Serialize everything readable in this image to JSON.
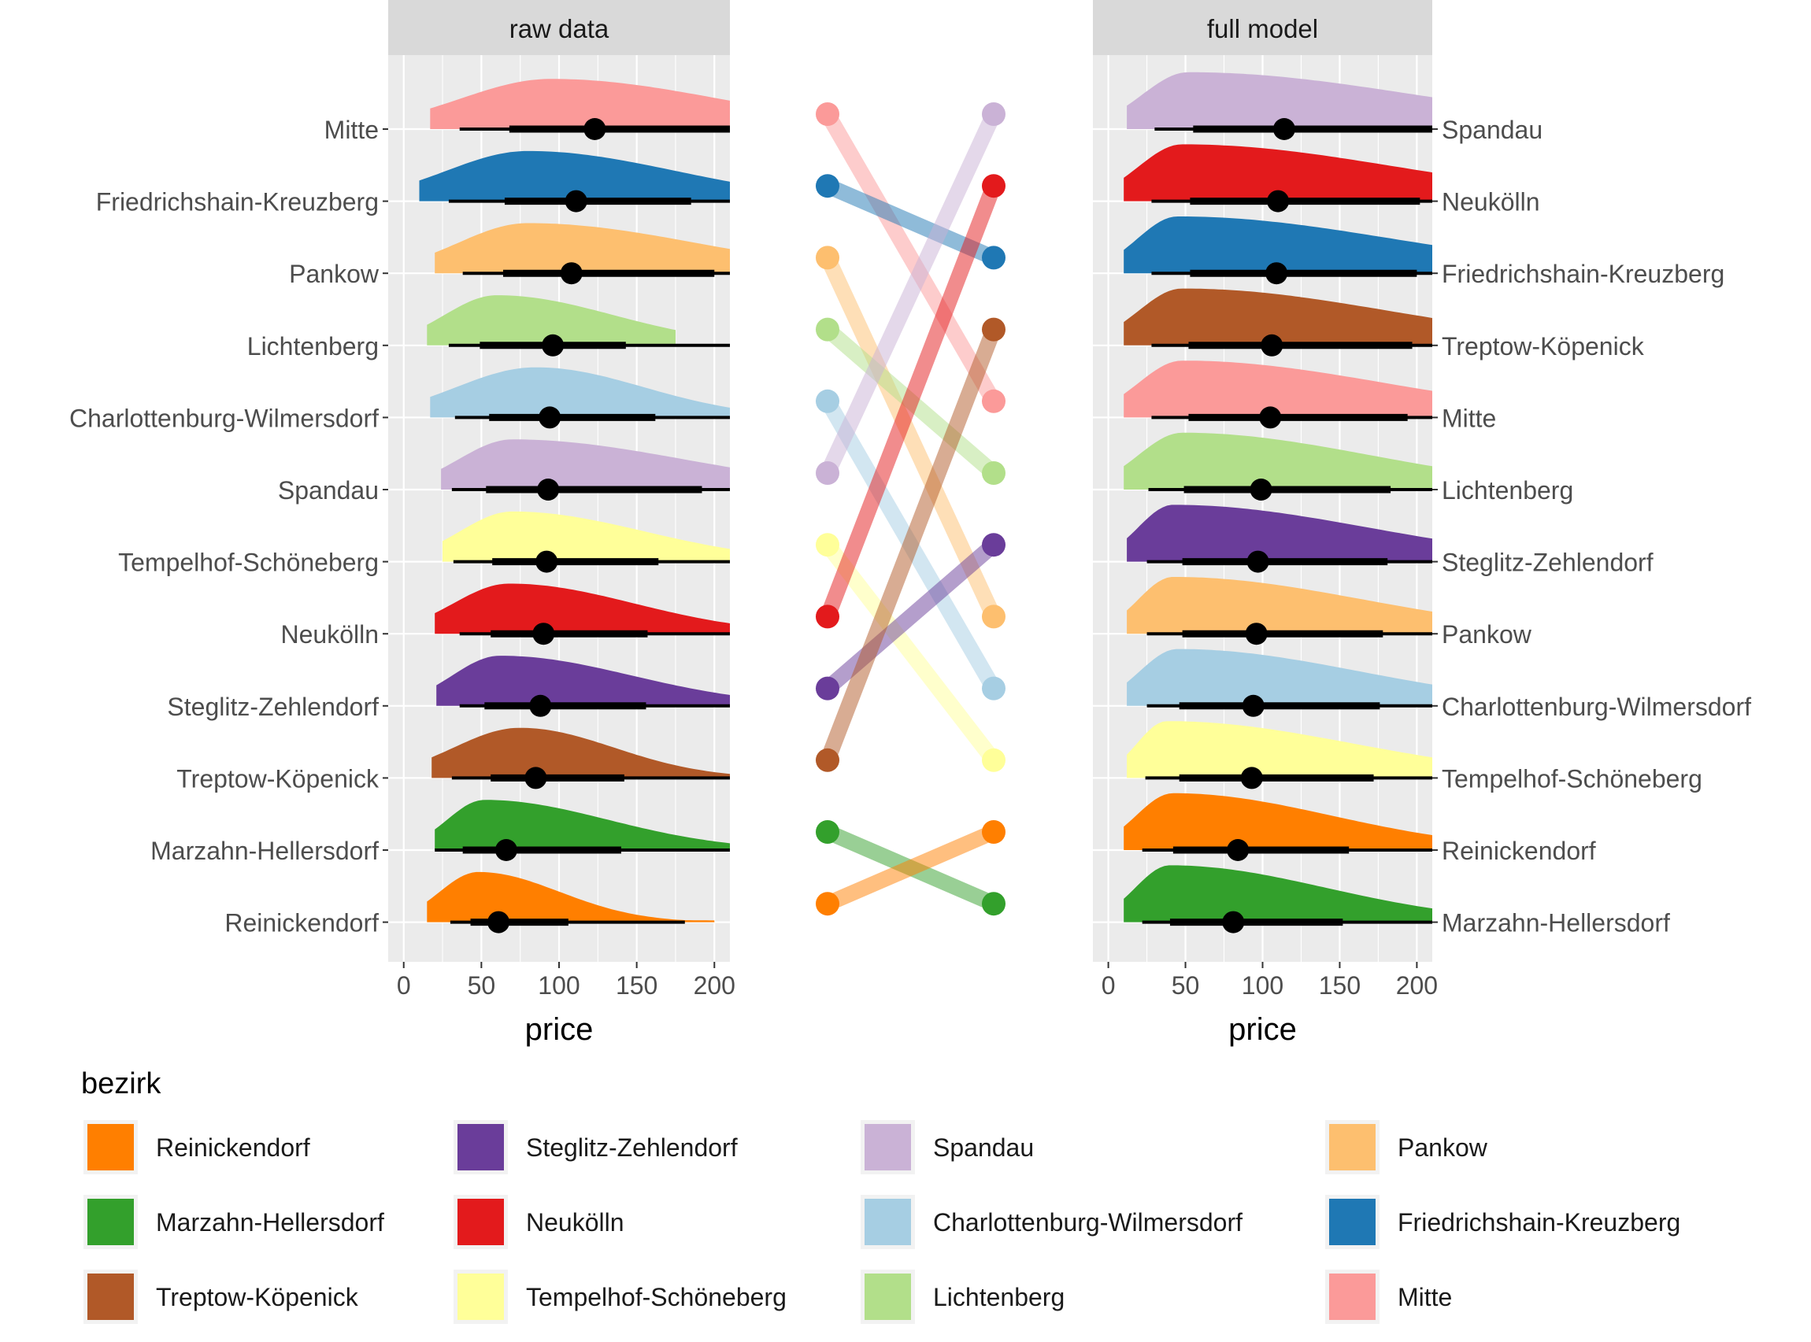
{
  "chart_data": {
    "type": "ridgeline",
    "legend_title": "bezirk",
    "xlabel": "price",
    "xlim": [
      -10,
      210
    ],
    "xticks": [
      0,
      50,
      100,
      150,
      200
    ],
    "districts": {
      "Reinickendorf": "#FF7F00",
      "Marzahn-Hellersdorf": "#33A02C",
      "Treptow-Köpenick": "#B15928",
      "Steglitz-Zehlendorf": "#6A3D9A",
      "Neukölln": "#E31A1C",
      "Tempelhof-Schöneberg": "#FFFF99",
      "Spandau": "#CAB2D6",
      "Charlottenburg-Wilmersdorf": "#A6CEE3",
      "Lichtenberg": "#B2DF8A",
      "Pankow": "#FDBF6F",
      "Friedrichshain-Kreuzberg": "#1F78B4",
      "Mitte": "#FB9A99"
    },
    "legend_order": [
      "Reinickendorf",
      "Marzahn-Hellersdorf",
      "Treptow-Köpenick",
      "Steglitz-Zehlendorf",
      "Neukölln",
      "Tempelhof-Schöneberg",
      "Spandau",
      "Charlottenburg-Wilmersdorf",
      "Lichtenberg",
      "Pankow",
      "Friedrichshain-Kreuzberg",
      "Mitte"
    ],
    "panels": [
      {
        "title": "raw data",
        "rows": [
          {
            "name": "Mitte",
            "median": 123,
            "q66": [
              68,
              215
            ],
            "q95": [
              36,
              215
            ],
            "range": [
              17,
              215
            ],
            "mode": 95
          },
          {
            "name": "Friedrichshain-Kreuzberg",
            "median": 111,
            "q66": [
              65,
              185
            ],
            "q95": [
              29,
              215
            ],
            "range": [
              10,
              215
            ],
            "mode": 80
          },
          {
            "name": "Pankow",
            "median": 108,
            "q66": [
              64,
              200
            ],
            "q95": [
              38,
              215
            ],
            "range": [
              20,
              215
            ],
            "mode": 80
          },
          {
            "name": "Lichtenberg",
            "median": 96,
            "q66": [
              49,
              143
            ],
            "q95": [
              29,
              215
            ],
            "range": [
              15,
              175
            ],
            "mode": 60
          },
          {
            "name": "Charlottenburg-Wilmersdorf",
            "median": 94,
            "q66": [
              55,
              162
            ],
            "q95": [
              33,
              215
            ],
            "range": [
              17,
              215
            ],
            "mode": 85
          },
          {
            "name": "Spandau",
            "median": 93,
            "q66": [
              53,
              192
            ],
            "q95": [
              31,
              215
            ],
            "range": [
              24,
              215
            ],
            "mode": 70
          },
          {
            "name": "Tempelhof-Schöneberg",
            "median": 92,
            "q66": [
              57,
              164
            ],
            "q95": [
              32,
              215
            ],
            "range": [
              25,
              215
            ],
            "mode": 70
          },
          {
            "name": "Neukölln",
            "median": 90,
            "q66": [
              56,
              157
            ],
            "q95": [
              36,
              215
            ],
            "range": [
              20,
              215
            ],
            "mode": 68
          },
          {
            "name": "Steglitz-Zehlendorf",
            "median": 88,
            "q66": [
              52,
              156
            ],
            "q95": [
              36,
              215
            ],
            "range": [
              21,
              215
            ],
            "mode": 62
          },
          {
            "name": "Treptow-Köpenick",
            "median": 85,
            "q66": [
              56,
              142
            ],
            "q95": [
              31,
              215
            ],
            "range": [
              18,
              215
            ],
            "mode": 75
          },
          {
            "name": "Marzahn-Hellersdorf",
            "median": 66,
            "q66": [
              38,
              140
            ],
            "q95": [
              20,
              215
            ],
            "range": [
              20,
              215
            ],
            "mode": 52
          },
          {
            "name": "Reinickendorf",
            "median": 61,
            "q66": [
              43,
              106
            ],
            "q95": [
              30,
              181
            ],
            "range": [
              15,
              200
            ],
            "mode": 48
          }
        ]
      },
      {
        "title": "full model",
        "rows": [
          {
            "name": "Spandau",
            "median": 114,
            "q66": [
              55,
              215
            ],
            "q95": [
              30,
              215
            ],
            "range": [
              12,
              215
            ],
            "mode": 52
          },
          {
            "name": "Neukölln",
            "median": 110,
            "q66": [
              53,
              202
            ],
            "q95": [
              28,
              215
            ],
            "range": [
              10,
              215
            ],
            "mode": 48
          },
          {
            "name": "Friedrichshain-Kreuzberg",
            "median": 109,
            "q66": [
              53,
              200
            ],
            "q95": [
              28,
              215
            ],
            "range": [
              10,
              215
            ],
            "mode": 45
          },
          {
            "name": "Treptow-Köpenick",
            "median": 106,
            "q66": [
              52,
              197
            ],
            "q95": [
              28,
              215
            ],
            "range": [
              10,
              215
            ],
            "mode": 48
          },
          {
            "name": "Mitte",
            "median": 105,
            "q66": [
              52,
              194
            ],
            "q95": [
              28,
              215
            ],
            "range": [
              10,
              215
            ],
            "mode": 48
          },
          {
            "name": "Lichtenberg",
            "median": 99,
            "q66": [
              49,
              183
            ],
            "q95": [
              26,
              215
            ],
            "range": [
              10,
              215
            ],
            "mode": 48
          },
          {
            "name": "Steglitz-Zehlendorf",
            "median": 97,
            "q66": [
              48,
              181
            ],
            "q95": [
              25,
              215
            ],
            "range": [
              12,
              215
            ],
            "mode": 42
          },
          {
            "name": "Pankow",
            "median": 96,
            "q66": [
              48,
              178
            ],
            "q95": [
              25,
              215
            ],
            "range": [
              12,
              215
            ],
            "mode": 42
          },
          {
            "name": "Charlottenburg-Wilmersdorf",
            "median": 94,
            "q66": [
              46,
              176
            ],
            "q95": [
              25,
              215
            ],
            "range": [
              12,
              215
            ],
            "mode": 45
          },
          {
            "name": "Tempelhof-Schöneberg",
            "median": 93,
            "q66": [
              46,
              172
            ],
            "q95": [
              24,
              215
            ],
            "range": [
              12,
              215
            ],
            "mode": 38
          },
          {
            "name": "Reinickendorf",
            "median": 84,
            "q66": [
              42,
              156
            ],
            "q95": [
              22,
              215
            ],
            "range": [
              10,
              215
            ],
            "mode": 42
          },
          {
            "name": "Marzahn-Hellersdorf",
            "median": 81,
            "q66": [
              40,
              152
            ],
            "q95": [
              22,
              215
            ],
            "range": [
              10,
              215
            ],
            "mode": 40
          }
        ]
      }
    ]
  }
}
